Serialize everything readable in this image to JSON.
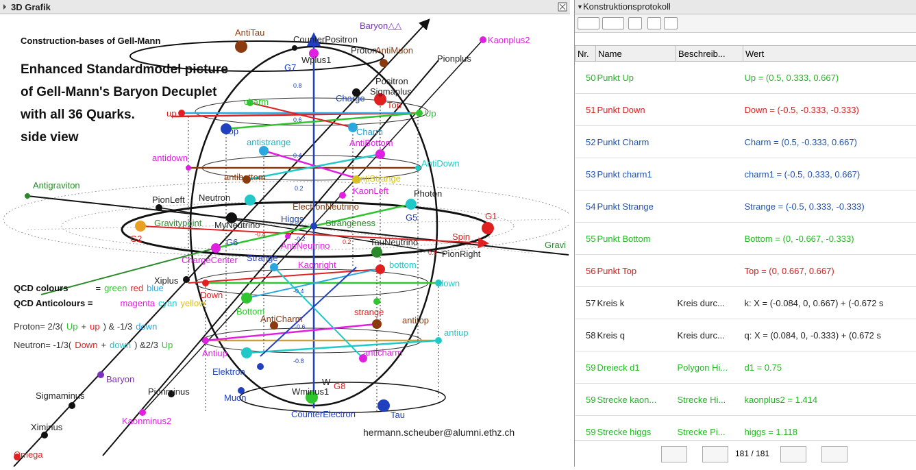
{
  "left_panel": {
    "title": "3D Grafik",
    "heading": "Construction-bases of Gell-Mann",
    "description": [
      "Enhanced Standardmodel picture",
      "of Gell-Mann's Baryon Decuplet",
      "with all 36 Quarks.",
      "side view"
    ],
    "legend": [
      [
        {
          "text": "QCD colours",
          "color": "#111"
        },
        {
          "text": "=",
          "color": "#111"
        },
        {
          "text": "green",
          "color": "#2fc52f"
        },
        {
          "text": "red",
          "color": "#e02020"
        },
        {
          "text": "blue",
          "color": "#2aa7e0"
        }
      ],
      [
        {
          "text": "QCD Anticolours =",
          "color": "#111"
        },
        {
          "text": "magenta",
          "color": "#e020e0"
        },
        {
          "text": "cyan",
          "color": "#20c8c8"
        },
        {
          "text": "yellow",
          "color": "#d8c020"
        }
      ],
      [
        {
          "text": "Proton= 2/3(",
          "color": "#333"
        },
        {
          "text": "Up",
          "color": "#2fc52f"
        },
        {
          "text": "+",
          "color": "#333"
        },
        {
          "text": "up",
          "color": "#e02020"
        },
        {
          "text": ") & -1/3",
          "color": "#333"
        },
        {
          "text": "down",
          "color": "#2aa7e0"
        }
      ],
      [
        {
          "text": "Neutron= -1/3(",
          "color": "#333"
        },
        {
          "text": "Down",
          "color": "#e02020"
        },
        {
          "text": "+",
          "color": "#333"
        },
        {
          "text": "down",
          "color": "#20c8c8"
        },
        {
          "text": ") &2/3",
          "color": "#333"
        },
        {
          "text": "Up",
          "color": "#2fc52f"
        }
      ]
    ],
    "labels": [
      {
        "text": "AntiTau",
        "color": "#8b3a0f"
      },
      {
        "text": "CounterPositron",
        "color": "#222"
      },
      {
        "text": "Baryon△△",
        "color": "#7a30c0"
      },
      {
        "text": "Kaonplus2",
        "color": "#e020e0"
      },
      {
        "text": "Proton",
        "color": "#222"
      },
      {
        "text": "AntiMuon",
        "color": "#8b3a0f"
      },
      {
        "text": "Pionplus",
        "color": "#222"
      },
      {
        "text": "G7",
        "color": "#2040c0"
      },
      {
        "text": "Wplus1",
        "color": "#222"
      },
      {
        "text": "Positron",
        "color": "#222"
      },
      {
        "text": "Sigmaplus",
        "color": "#222"
      },
      {
        "text": "Charge",
        "color": "#2040c0"
      },
      {
        "text": "Top",
        "color": "#e02020"
      },
      {
        "text": "up",
        "color": "#e02020"
      },
      {
        "text": "charm",
        "color": "#2fc52f"
      },
      {
        "text": "Up",
        "color": "#2fc52f"
      },
      {
        "text": "top",
        "color": "#2040c0"
      },
      {
        "text": "Charm",
        "color": "#20a0d0"
      },
      {
        "text": "antistrange",
        "color": "#20b0c0"
      },
      {
        "text": "AntiBottom",
        "color": "#e020e0"
      },
      {
        "text": "antidown",
        "color": "#e020e0"
      },
      {
        "text": "AntiDown",
        "color": "#20c8c8"
      },
      {
        "text": "antibottom",
        "color": "#8b3a0f"
      },
      {
        "text": "AntiStrange",
        "color": "#d8c020"
      },
      {
        "text": "KaonLeft",
        "color": "#e020e0"
      },
      {
        "text": "Antigraviton",
        "color": "#2a8a2a"
      },
      {
        "text": "PionLeft",
        "color": "#222"
      },
      {
        "text": "Neutron",
        "color": "#222"
      },
      {
        "text": "Photon",
        "color": "#222"
      },
      {
        "text": "ElectronNeutrino",
        "color": "#8b3a0f"
      },
      {
        "text": "G5",
        "color": "#2040c0"
      },
      {
        "text": "Gravitypoint",
        "color": "#2a8a2a"
      },
      {
        "text": "MyNeutrino",
        "color": "#222"
      },
      {
        "text": "Higgs",
        "color": "#2040c0"
      },
      {
        "text": "Strangeness",
        "color": "#2a8a2a"
      },
      {
        "text": "G1",
        "color": "#e02020"
      },
      {
        "text": "G2",
        "color": "#e02020"
      },
      {
        "text": "G6",
        "color": "#2040c0"
      },
      {
        "text": "AntiNeutrino",
        "color": "#e020e0"
      },
      {
        "text": "TauNeutrino",
        "color": "#222"
      },
      {
        "text": "Spin",
        "color": "#e02020"
      },
      {
        "text": "PionRight",
        "color": "#222"
      },
      {
        "text": "Gravi",
        "color": "#2a8a2a"
      },
      {
        "text": "ChargeCenter",
        "color": "#e020e0"
      },
      {
        "text": "Strange",
        "color": "#2040c0"
      },
      {
        "text": "Kaonright",
        "color": "#e020e0"
      },
      {
        "text": "bottom",
        "color": "#20c8c8"
      },
      {
        "text": "Xiplus",
        "color": "#222"
      },
      {
        "text": "Down",
        "color": "#e02020"
      },
      {
        "text": "down",
        "color": "#20c8c8"
      },
      {
        "text": "Bottom",
        "color": "#2fc52f"
      },
      {
        "text": "strange",
        "color": "#e02020"
      },
      {
        "text": "AntiCharm",
        "color": "#8b3a0f"
      },
      {
        "text": "antitop",
        "color": "#8b3a0f"
      },
      {
        "text": "antiup",
        "color": "#20c8c8"
      },
      {
        "text": "Antiup",
        "color": "#e020e0"
      },
      {
        "text": "anticharm",
        "color": "#e020e0"
      },
      {
        "text": "Elektron",
        "color": "#2040c0"
      },
      {
        "text": "Muon",
        "color": "#2040c0"
      },
      {
        "text": "Wminus1",
        "color": "#222"
      },
      {
        "text": "G8",
        "color": "#e02020"
      },
      {
        "text": "W",
        "color": "#222"
      },
      {
        "text": "Sigmaminus",
        "color": "#222"
      },
      {
        "text": "Pionminus",
        "color": "#222"
      },
      {
        "text": "Baryon",
        "color": "#7a30c0"
      },
      {
        "text": "Kaonminus2",
        "color": "#e020e0"
      },
      {
        "text": "CounterElectron",
        "color": "#2040c0"
      },
      {
        "text": "Tau",
        "color": "#2040c0"
      },
      {
        "text": "Ximinus",
        "color": "#222"
      },
      {
        "text": "Omega",
        "color": "#e02020"
      },
      {
        "text": "0.8",
        "color": "#2040c0"
      },
      {
        "text": "0.6",
        "color": "#2040c0"
      },
      {
        "text": "0.4",
        "color": "#2040c0"
      },
      {
        "text": "0.2",
        "color": "#2040c0"
      },
      {
        "text": "-0.2",
        "color": "#2040c0"
      },
      {
        "text": "-0.4",
        "color": "#2040c0"
      },
      {
        "text": "-0.6",
        "color": "#2040c0"
      },
      {
        "text": "-0.8",
        "color": "#2040c0"
      },
      {
        "text": "-0.4",
        "color": "#e02020"
      },
      {
        "text": "0.2",
        "color": "#e02020"
      },
      {
        "text": "0.8",
        "color": "#e02020"
      }
    ],
    "email": "hermann.scheuber@alumni.ethz.ch"
  },
  "right_panel": {
    "title": "Konstruktionsprotokoll",
    "columns": [
      "Nr.",
      "Name",
      "Beschreib...",
      "Wert"
    ],
    "rows": [
      {
        "color": "#22b822",
        "cells": [
          "50",
          "Punkt Up",
          "",
          "Up = (0.5, 0.333, 0.667)"
        ]
      },
      {
        "color": "#d42020",
        "cells": [
          "51",
          "Punkt Down",
          "",
          "Down = (-0.5, -0.333, -0.333)"
        ]
      },
      {
        "color": "#2050b0",
        "cells": [
          "52",
          "Punkt Charm",
          "",
          "Charm = (0.5, -0.333, 0.667)"
        ]
      },
      {
        "color": "#2050b0",
        "cells": [
          "53",
          "Punkt charm1",
          "",
          "charm1 = (-0.5, 0.333, 0.667)"
        ]
      },
      {
        "color": "#2050b0",
        "cells": [
          "54",
          "Punkt Strange",
          "",
          "Strange = (-0.5, 0.333, -0.333)"
        ]
      },
      {
        "color": "#22b822",
        "cells": [
          "55",
          "Punkt Bottom",
          "",
          "Bottom = (0, -0.667, -0.333)"
        ]
      },
      {
        "color": "#d42020",
        "cells": [
          "56",
          "Punkt Top",
          "",
          "Top = (0, 0.667, 0.667)"
        ]
      },
      {
        "color": "#222222",
        "cells": [
          "57",
          "Kreis k",
          "Kreis durc...",
          "k: X = (-0.084, 0, 0.667) + (-0.672 s"
        ]
      },
      {
        "color": "#222222",
        "cells": [
          "58",
          "Kreis q",
          "Kreis durc...",
          "q: X = (0.084, 0, -0.333) + (0.672 s"
        ]
      },
      {
        "color": "#22b822",
        "cells": [
          "59",
          "Dreieck d1",
          "Polygon Hi...",
          "d1 = 0.75"
        ]
      },
      {
        "color": "#22b822",
        "cells": [
          "59",
          "Strecke kaon...",
          "Strecke Hi...",
          "kaonplus2 = 1.414"
        ]
      },
      {
        "color": "#22b822",
        "cells": [
          "59",
          "Strecke higgs",
          "Strecke Pi...",
          "higgs = 1.118"
        ]
      }
    ],
    "pager": "181 / 181"
  }
}
